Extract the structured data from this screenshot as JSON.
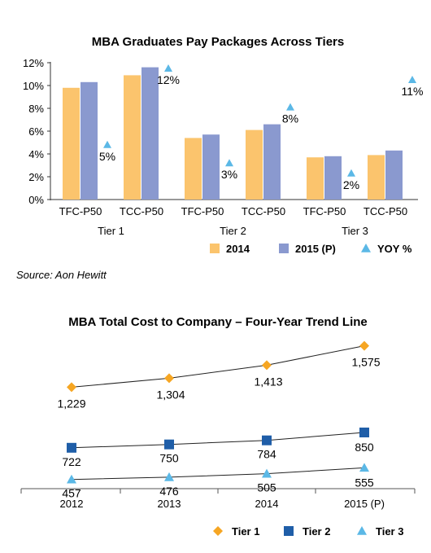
{
  "chart_data": [
    {
      "type": "bar",
      "title": "MBA Graduates Pay Packages Across Tiers",
      "ylim": [
        0,
        12
      ],
      "yticks": [
        "0%",
        "2%",
        "4%",
        "6%",
        "8%",
        "10%",
        "12%"
      ],
      "categories": [
        "TFC-P50",
        "TCC-P50",
        "TFC-P50",
        "TCC-P50",
        "TFC-P50",
        "TCC-P50"
      ],
      "groups": [
        "Tier 1",
        "Tier 2",
        "Tier 3"
      ],
      "series": [
        {
          "name": "2014",
          "color": "#FBC46D",
          "values": [
            9.8,
            10.9,
            5.4,
            6.1,
            3.7,
            3.9
          ]
        },
        {
          "name": "2015 (P)",
          "color": "#8A99CF",
          "values": [
            10.3,
            11.6,
            5.7,
            6.6,
            3.8,
            4.3
          ]
        }
      ],
      "yoy": {
        "name": "YOY %",
        "color": "#5BB8E6",
        "values": [
          4.8,
          11.5,
          3.2,
          8.1,
          2.3,
          10.5
        ],
        "labels": [
          "5%",
          "12%",
          "3%",
          "8%",
          "2%",
          "11%"
        ]
      },
      "legend": [
        "2014",
        "2015 (P)",
        "YOY %"
      ],
      "source": "Source: Aon Hewitt"
    },
    {
      "type": "line",
      "title": "MBA Total Cost to Company – Four-Year Trend Line",
      "x": [
        "2012",
        "2013",
        "2014",
        "2015 (P)"
      ],
      "series": [
        {
          "name": "Tier 1",
          "marker": "diamond",
          "color": "#F6A623",
          "values": [
            1229,
            1304,
            1413,
            1575
          ],
          "labels": [
            "1,229",
            "1,304",
            "1,413",
            "1,575"
          ]
        },
        {
          "name": "Tier 2",
          "marker": "square",
          "color": "#1F5EA8",
          "values": [
            722,
            750,
            784,
            850
          ],
          "labels": [
            "722",
            "750",
            "784",
            "850"
          ]
        },
        {
          "name": "Tier 3",
          "marker": "triangle",
          "color": "#5BB8E6",
          "values": [
            457,
            476,
            505,
            555
          ],
          "labels": [
            "457",
            "476",
            "505",
            "555"
          ]
        }
      ],
      "legend": [
        "Tier 1",
        "Tier 2",
        "Tier 3"
      ]
    }
  ]
}
